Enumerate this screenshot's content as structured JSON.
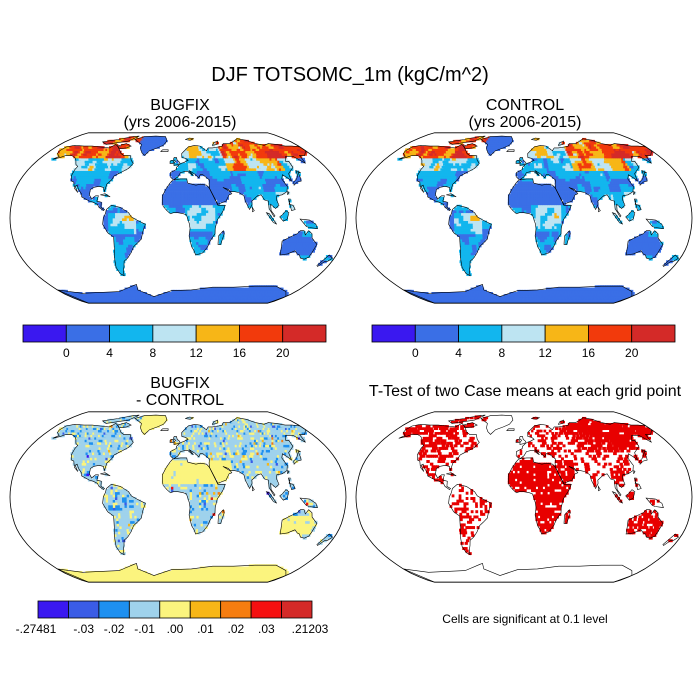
{
  "figure_title": "DJF TOTSOMC_1m (kgC/m^2)",
  "panels": {
    "bugfix": {
      "title_line1": "BUGFIX",
      "title_line2": "(yrs 2006-2015)"
    },
    "control": {
      "title_line1": "CONTROL",
      "title_line2": "(yrs 2006-2015)"
    },
    "diff": {
      "title_line1": "BUGFIX",
      "title_line2": "- CONTROL"
    },
    "ttest": {
      "title_line1": "T-Test of two Case means at each grid point"
    }
  },
  "significance_note": "Cells are significant at 0.1 level",
  "colors": {
    "land_scale": [
      "#3a18f0",
      "#3a6fe6",
      "#12b6ee",
      "#bde4f2",
      "#f7b617",
      "#f23a0c",
      "#d42a28"
    ],
    "diff_scale": [
      "#3a18f0",
      "#3a5ce6",
      "#1e90f0",
      "#9fd2ec",
      "#fbf47e",
      "#f7b617",
      "#f57d10",
      "#f51010",
      "#d42a28"
    ],
    "significant": "#e80000"
  },
  "chart_data": [
    {
      "type": "heatmap",
      "title": "BUGFIX (yrs 2006-2015)",
      "projection": "Robinson",
      "colorbar_ticks": [
        "0",
        "4",
        "8",
        "12",
        "16",
        "20"
      ],
      "colorbar_bins": 7
    },
    {
      "type": "heatmap",
      "title": "CONTROL (yrs 2006-2015)",
      "projection": "Robinson",
      "colorbar_ticks": [
        "0",
        "4",
        "8",
        "12",
        "16",
        "20"
      ],
      "colorbar_bins": 7
    },
    {
      "type": "heatmap",
      "title": "BUGFIX - CONTROL",
      "projection": "Robinson",
      "colorbar_ticks": [
        "-.27481",
        "-.03",
        "-.02",
        "-.01",
        ".00",
        ".01",
        ".02",
        ".03",
        ".21203"
      ],
      "colorbar_bins": 9
    },
    {
      "type": "heatmap",
      "title": "T-Test of two Case means at each grid point",
      "projection": "Robinson",
      "note": "Cells are significant at 0.1 level"
    }
  ]
}
